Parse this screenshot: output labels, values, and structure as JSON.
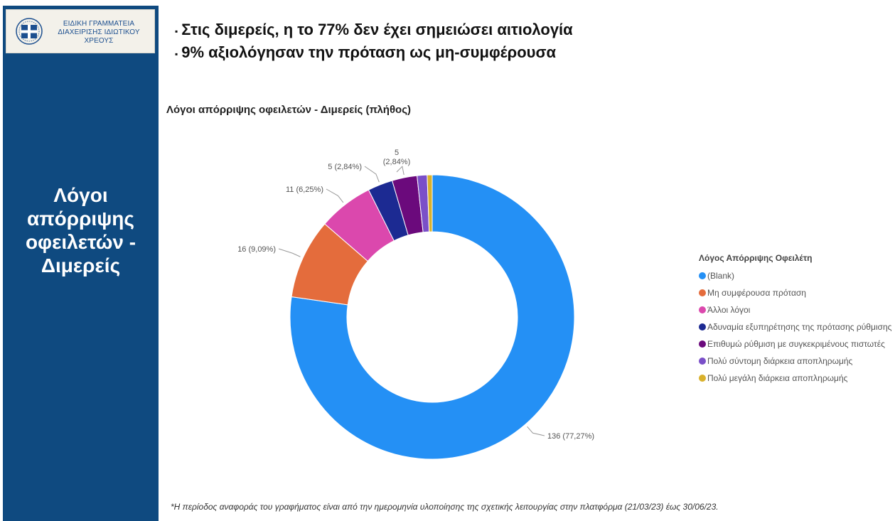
{
  "logo": {
    "text": "ΕΙΔΙΚΗ ΓΡΑΜΜΑΤΕΙΑ\nΔΙΑΧΕΙΡΙΣΗΣ ΙΔΙΩΤΙΚΟΥ\nΧΡΕΟΥΣ",
    "icon": "greek-emblem-icon"
  },
  "sidebar": {
    "title": "Λόγοι\nαπόρριψης\nοφειλετών -\nΔιμερείς"
  },
  "bullets": [
    "Στις διμερείς, η το 77% δεν έχει σημειώσει αιτιολογία",
    "9% αξιολόγησαν την πρόταση ως μη-συμφέρουσα"
  ],
  "bullet_marker": "▪",
  "chart_data": {
    "type": "pie",
    "variant": "donut",
    "title": "Λόγοι απόρριψης οφειλετών - Διμερείς (πλήθος)",
    "legend_title": "Λόγος Απόρριψης Οφειλέτη",
    "legend_position": "right",
    "categories": [
      "(Blank)",
      "Μη συμφέρουσα πρόταση",
      "Άλλοι λόγοι",
      "Αδυναμία εξυπηρέτησης της πρότασης ρύθμισης",
      "Επιθυμώ ρύθμιση με συγκεκριμένους πιστωτές",
      "Πολύ σύντομη διάρκεια αποπληρωμής",
      "Πολύ μεγάλη διάρκεια αποπληρωμής"
    ],
    "values": [
      136,
      16,
      11,
      5,
      5,
      2,
      1
    ],
    "colors": [
      "#2490f5",
      "#e46c3c",
      "#db48ad",
      "#1c2a92",
      "#6b0a7c",
      "#7a4fc8",
      "#d9b12c"
    ],
    "data_labels": [
      "136 (77,27%)",
      "16 (9,09%)",
      "11 (6,25%)",
      "5 (2,84%)",
      "5\n(2,84%)",
      "",
      ""
    ]
  },
  "footnote": "*Η περίοδος αναφοράς του γραφήματος είναι από την ημερομηνία υλοποίησης της σχετικής λειτουργίας στην πλατφόρμα (21/03/23) έως 30/06/23."
}
